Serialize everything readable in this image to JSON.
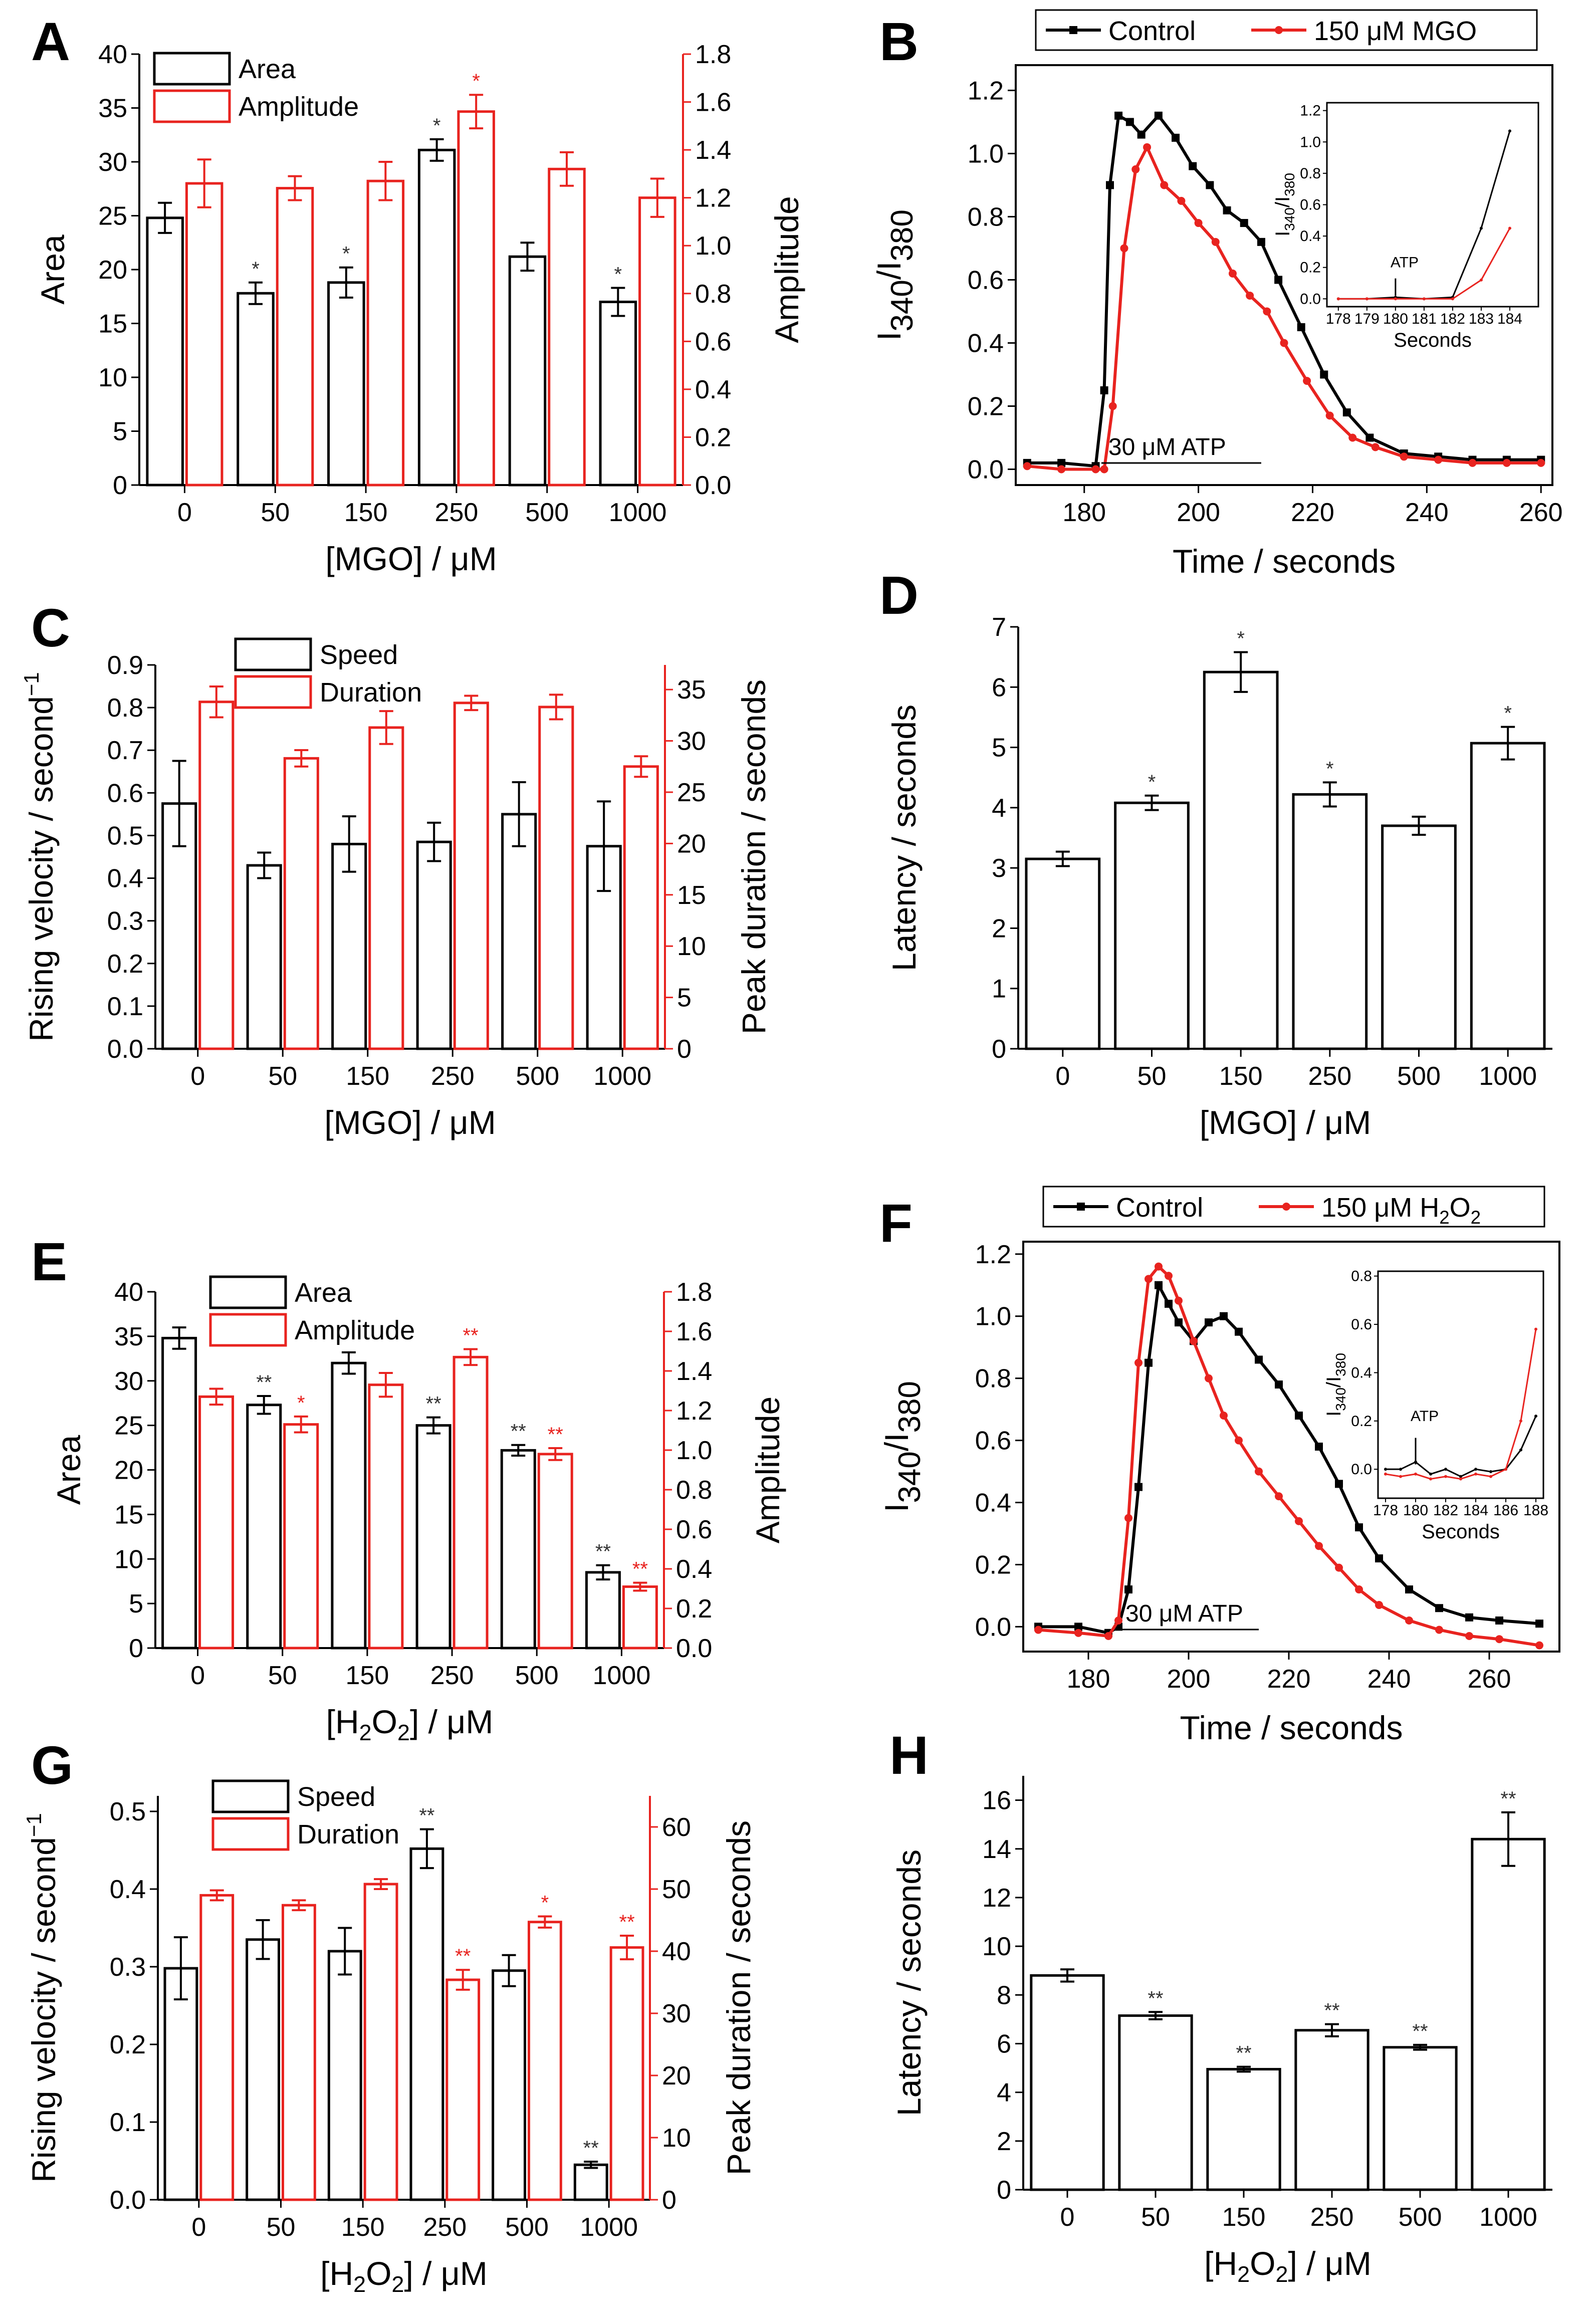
{
  "chart_data": [
    {
      "panel": "A",
      "type": "bar",
      "xlabel": "[MGO]   /   μM",
      "categories": [
        "0",
        "50",
        "150",
        "250",
        "500",
        "1000"
      ],
      "ylabel": "Area",
      "ylim": [
        0,
        40
      ],
      "yticks": [
        0,
        5,
        10,
        15,
        20,
        25,
        30,
        35,
        40
      ],
      "y2label": "Amplitude",
      "y2lim": [
        0,
        1.8
      ],
      "y2ticks": [
        0.0,
        0.2,
        0.4,
        0.6,
        0.8,
        1.0,
        1.2,
        1.4,
        1.6,
        1.8
      ],
      "y2ticklabels": [
        "0.0",
        "0.2",
        "0.4",
        "0.6",
        "0.8",
        "1.0",
        "1.2",
        "1.4",
        "1.6",
        "1.8"
      ],
      "legend": [
        "Area",
        "Amplitude"
      ],
      "series": [
        {
          "name": "Area",
          "axis": "left",
          "color": "#000000",
          "values": [
            24.8,
            17.8,
            18.8,
            31.1,
            21.2,
            17.0
          ],
          "errors": [
            1.4,
            1.0,
            1.4,
            1.0,
            1.3,
            1.3
          ],
          "stars": [
            "",
            "*",
            "*",
            "*",
            "",
            "*"
          ]
        },
        {
          "name": "Amplitude",
          "axis": "right",
          "color": "#e8231f",
          "values": [
            1.26,
            1.24,
            1.27,
            1.56,
            1.32,
            1.2
          ],
          "errors": [
            0.1,
            0.05,
            0.08,
            0.07,
            0.07,
            0.08
          ],
          "stars": [
            "",
            "",
            "",
            "*",
            "",
            ""
          ]
        }
      ]
    },
    {
      "panel": "B",
      "type": "line",
      "xlabel": "Time   /   seconds",
      "ylabel_main": "I",
      "ylabel_sub1": "340",
      "ylabel_slash": "/I",
      "ylabel_sub2": "380",
      "xlim": [
        168,
        262
      ],
      "xticks": [
        180,
        200,
        220,
        240,
        260
      ],
      "ylim": [
        -0.05,
        1.28
      ],
      "yticks": [
        0.0,
        0.2,
        0.4,
        0.6,
        0.8,
        1.0,
        1.2
      ],
      "yticklabels": [
        "0.0",
        "0.2",
        "0.4",
        "0.6",
        "0.8",
        "1.0",
        "1.2"
      ],
      "annotation": "30 μM ATP",
      "annotation_x": [
        183,
        211
      ],
      "legend": [
        "Control",
        "150 μM MGO"
      ],
      "series": [
        {
          "name": "Control",
          "color": "#000000",
          "marker": "square",
          "x": [
            170,
            176,
            182,
            183.5,
            184.5,
            186,
            188,
            190,
            193,
            196,
            199,
            202,
            205,
            208,
            211,
            214,
            218,
            222,
            226,
            230,
            236,
            242,
            248,
            254,
            260
          ],
          "y": [
            0.02,
            0.02,
            0.01,
            0.25,
            0.9,
            1.12,
            1.1,
            1.06,
            1.12,
            1.05,
            0.96,
            0.9,
            0.82,
            0.78,
            0.72,
            0.6,
            0.45,
            0.3,
            0.18,
            0.1,
            0.05,
            0.04,
            0.03,
            0.03,
            0.03
          ]
        },
        {
          "name": "150 μM MGO",
          "color": "#e8231f",
          "marker": "circle",
          "x": [
            170,
            176,
            182,
            183.5,
            185,
            187,
            189,
            191,
            194,
            197,
            200,
            203,
            206,
            209,
            212,
            215,
            219,
            223,
            227,
            231,
            236,
            242,
            248,
            254,
            260
          ],
          "y": [
            0.01,
            0.0,
            0.0,
            0.0,
            0.2,
            0.7,
            0.95,
            1.02,
            0.9,
            0.85,
            0.78,
            0.72,
            0.62,
            0.55,
            0.5,
            0.4,
            0.28,
            0.17,
            0.1,
            0.07,
            0.04,
            0.03,
            0.02,
            0.02,
            0.02
          ]
        }
      ],
      "inset": {
        "xlabel": "Seconds",
        "ylabel_main": "I",
        "ylabel_sub1": "340",
        "ylabel_slash": "/I",
        "ylabel_sub2": "380",
        "xlim": [
          177.6,
          185
        ],
        "xticks": [
          178,
          179,
          180,
          181,
          182,
          183,
          184
        ],
        "ylim": [
          -0.05,
          1.25
        ],
        "yticks": [
          0.0,
          0.2,
          0.4,
          0.6,
          0.8,
          1.0,
          1.2
        ],
        "yticklabels": [
          "0.0",
          "0.2",
          "0.4",
          "0.6",
          "0.8",
          "1.0",
          "1.2"
        ],
        "annotation": "ATP",
        "series": [
          {
            "name": "Control",
            "color": "#000000",
            "x": [
              178,
              179,
              180,
              181,
              182,
              183,
              184
            ],
            "y": [
              0.0,
              0.0,
              0.01,
              0.0,
              0.01,
              0.45,
              1.07
            ]
          },
          {
            "name": "150 μM MGO",
            "color": "#e8231f",
            "x": [
              178,
              179,
              180,
              181,
              182,
              183,
              184
            ],
            "y": [
              0.0,
              0.0,
              0.0,
              0.0,
              0.0,
              0.12,
              0.45
            ]
          }
        ]
      }
    },
    {
      "panel": "C",
      "type": "bar",
      "xlabel": "[MGO]   /   μM",
      "categories": [
        "0",
        "50",
        "150",
        "250",
        "500",
        "1000"
      ],
      "ylabel": "Rising velocity / second",
      "ylabel_sup": "−1",
      "ylim": [
        0,
        0.9
      ],
      "yticks": [
        0.0,
        0.1,
        0.2,
        0.3,
        0.4,
        0.5,
        0.6,
        0.7,
        0.8,
        0.9
      ],
      "yticklabels": [
        "0.0",
        "0.1",
        "0.2",
        "0.3",
        "0.4",
        "0.5",
        "0.6",
        "0.7",
        "0.8",
        "0.9"
      ],
      "y2label": "Peak duration / seconds",
      "y2lim": [
        0,
        37.4
      ],
      "y2ticks": [
        0,
        5,
        10,
        15,
        20,
        25,
        30,
        35
      ],
      "legend": [
        "Speed",
        "Duration"
      ],
      "series": [
        {
          "name": "Speed",
          "axis": "left",
          "color": "#000000",
          "values": [
            0.575,
            0.43,
            0.48,
            0.485,
            0.55,
            0.475
          ],
          "errors": [
            0.1,
            0.03,
            0.065,
            0.045,
            0.075,
            0.105
          ]
        },
        {
          "name": "Duration",
          "axis": "right",
          "color": "#e8231f",
          "values": [
            33.8,
            28.3,
            31.3,
            33.7,
            33.3,
            27.5
          ],
          "errors": [
            1.5,
            0.8,
            1.6,
            0.7,
            1.2,
            1.0
          ]
        }
      ]
    },
    {
      "panel": "D",
      "type": "bar",
      "xlabel": "[MGO]   /   μM",
      "categories": [
        "0",
        "50",
        "150",
        "250",
        "500",
        "1000"
      ],
      "ylabel": "Latency   /   seconds",
      "ylim": [
        0,
        7
      ],
      "yticks": [
        0,
        1,
        2,
        3,
        4,
        5,
        6,
        7
      ],
      "series": [
        {
          "name": "Latency",
          "color": "#000000",
          "values": [
            3.15,
            4.08,
            6.25,
            4.22,
            3.7,
            5.07
          ],
          "errors": [
            0.12,
            0.12,
            0.33,
            0.2,
            0.15,
            0.27
          ],
          "stars": [
            "",
            "*",
            "*",
            "*",
            "",
            "*"
          ]
        }
      ]
    },
    {
      "panel": "E",
      "type": "bar",
      "xlabel": "[H2O2]   /   μM",
      "categories": [
        "0",
        "50",
        "150",
        "250",
        "500",
        "1000"
      ],
      "ylabel": "Area",
      "ylim": [
        0,
        40
      ],
      "yticks": [
        0,
        5,
        10,
        15,
        20,
        25,
        30,
        35,
        40
      ],
      "y2label": "Amplitude",
      "y2lim": [
        0,
        1.8
      ],
      "y2ticks": [
        0.0,
        0.2,
        0.4,
        0.6,
        0.8,
        1.0,
        1.2,
        1.4,
        1.6,
        1.8
      ],
      "y2ticklabels": [
        "0.0",
        "0.2",
        "0.4",
        "0.6",
        "0.8",
        "1.0",
        "1.2",
        "1.4",
        "1.6",
        "1.8"
      ],
      "legend": [
        "Area",
        "Amplitude"
      ],
      "series": [
        {
          "name": "Area",
          "axis": "left",
          "color": "#000000",
          "values": [
            34.8,
            27.3,
            32.0,
            25.0,
            22.2,
            8.5
          ],
          "errors": [
            1.2,
            1.0,
            1.2,
            0.9,
            0.6,
            0.8
          ],
          "stars": [
            "",
            "**",
            "",
            "**",
            "**",
            "**"
          ]
        },
        {
          "name": "Amplitude",
          "axis": "right",
          "color": "#e8231f",
          "values": [
            1.27,
            1.13,
            1.33,
            1.47,
            0.98,
            0.31
          ],
          "errors": [
            0.04,
            0.04,
            0.06,
            0.04,
            0.03,
            0.02
          ],
          "stars": [
            "",
            "*",
            "",
            "**",
            "**",
            "**"
          ]
        }
      ]
    },
    {
      "panel": "F",
      "type": "line",
      "xlabel": "Time   /   seconds",
      "ylabel_main": "I",
      "ylabel_sub1": "340",
      "ylabel_slash": "/I",
      "ylabel_sub2": "380",
      "xlim": [
        167,
        274
      ],
      "xticks": [
        180,
        200,
        220,
        240,
        260
      ],
      "ylim": [
        -0.08,
        1.24
      ],
      "yticks": [
        0.0,
        0.2,
        0.4,
        0.6,
        0.8,
        1.0,
        1.2
      ],
      "yticklabels": [
        "0.0",
        "0.2",
        "0.4",
        "0.6",
        "0.8",
        "1.0",
        "1.2"
      ],
      "annotation": "30 μM ATP",
      "annotation_x": [
        186,
        214
      ],
      "legend": [
        "Control",
        "150 μM H2O2"
      ],
      "series": [
        {
          "name": "Control",
          "color": "#000000",
          "marker": "square",
          "x": [
            170,
            178,
            184,
            186,
            188,
            190,
            192,
            194,
            196,
            198,
            201,
            204,
            207,
            210,
            214,
            218,
            222,
            226,
            230,
            234,
            238,
            244,
            250,
            256,
            262,
            270
          ],
          "y": [
            0.0,
            0.0,
            -0.02,
            0.0,
            0.12,
            0.45,
            0.85,
            1.1,
            1.04,
            0.98,
            0.92,
            0.98,
            1.0,
            0.95,
            0.86,
            0.78,
            0.68,
            0.58,
            0.46,
            0.32,
            0.22,
            0.12,
            0.06,
            0.03,
            0.02,
            0.01
          ]
        },
        {
          "name": "150 μM H2O2",
          "color": "#e8231f",
          "marker": "circle",
          "x": [
            170,
            178,
            184,
            186,
            188,
            190,
            192,
            194,
            196,
            198,
            201,
            204,
            207,
            210,
            214,
            218,
            222,
            226,
            230,
            234,
            238,
            244,
            250,
            256,
            262,
            270
          ],
          "y": [
            -0.01,
            -0.02,
            -0.03,
            0.02,
            0.35,
            0.85,
            1.12,
            1.16,
            1.13,
            1.05,
            0.92,
            0.8,
            0.68,
            0.6,
            0.5,
            0.42,
            0.34,
            0.26,
            0.19,
            0.12,
            0.07,
            0.02,
            -0.01,
            -0.03,
            -0.04,
            -0.06
          ]
        }
      ],
      "inset": {
        "xlabel": "Seconds",
        "ylabel_main": "I",
        "ylabel_sub1": "340",
        "ylabel_slash": "/I",
        "ylabel_sub2": "380",
        "xlim": [
          177.5,
          188.5
        ],
        "xticks": [
          178,
          180,
          182,
          184,
          186,
          188
        ],
        "ylim": [
          -0.12,
          0.82
        ],
        "yticks": [
          0.0,
          0.2,
          0.4,
          0.6,
          0.8
        ],
        "yticklabels": [
          "0.0",
          "0.2",
          "0.4",
          "0.6",
          "0.8"
        ],
        "annotation": "ATP",
        "series": [
          {
            "name": "Control",
            "color": "#000000",
            "x": [
              178,
              179,
              180,
              181,
              182,
              183,
              184,
              185,
              186,
              187,
              188
            ],
            "y": [
              0.0,
              0.0,
              0.03,
              -0.02,
              0.0,
              -0.03,
              0.0,
              -0.01,
              0.0,
              0.08,
              0.22
            ]
          },
          {
            "name": "150 μM H2O2",
            "color": "#e8231f",
            "x": [
              178,
              179,
              180,
              181,
              182,
              183,
              184,
              185,
              186,
              187,
              188
            ],
            "y": [
              -0.02,
              -0.03,
              -0.02,
              -0.04,
              -0.03,
              -0.04,
              -0.02,
              -0.03,
              0.0,
              0.2,
              0.58
            ]
          }
        ]
      }
    },
    {
      "panel": "G",
      "type": "bar",
      "xlabel": "[H2O2]   /   μM",
      "categories": [
        "0",
        "50",
        "150",
        "250",
        "500",
        "1000"
      ],
      "ylabel": "Rising velocity / second",
      "ylabel_sup": "−1",
      "ylim": [
        0,
        0.52
      ],
      "yticks": [
        0.0,
        0.1,
        0.2,
        0.3,
        0.4,
        0.5
      ],
      "yticklabels": [
        "0.0",
        "0.1",
        "0.2",
        "0.3",
        "0.4",
        "0.5"
      ],
      "y2label": "Peak duration / seconds",
      "y2lim": [
        0,
        65
      ],
      "y2ticks": [
        0,
        10,
        20,
        30,
        40,
        50,
        60
      ],
      "legend": [
        "Speed",
        "Duration"
      ],
      "series": [
        {
          "name": "Speed",
          "axis": "left",
          "color": "#000000",
          "values": [
            0.298,
            0.335,
            0.32,
            0.452,
            0.295,
            0.045
          ],
          "errors": [
            0.04,
            0.025,
            0.03,
            0.025,
            0.02,
            0.004
          ],
          "stars": [
            "",
            "",
            "",
            "**",
            "",
            "**"
          ]
        },
        {
          "name": "Duration",
          "axis": "right",
          "color": "#e8231f",
          "values": [
            49.0,
            47.4,
            50.8,
            35.4,
            44.7,
            40.6
          ],
          "errors": [
            0.8,
            0.8,
            0.8,
            1.6,
            0.9,
            1.9
          ],
          "stars": [
            "",
            "",
            "",
            "**",
            "*",
            "**"
          ]
        }
      ]
    },
    {
      "panel": "H",
      "type": "bar",
      "xlabel": "[H2O2]   /   μM",
      "categories": [
        "0",
        "50",
        "150",
        "250",
        "500",
        "1000"
      ],
      "ylabel": "Latency   /   seconds",
      "ylim": [
        0,
        17
      ],
      "yticks": [
        0,
        2,
        4,
        6,
        8,
        10,
        12,
        14,
        16
      ],
      "series": [
        {
          "name": "Latency",
          "color": "#000000",
          "values": [
            8.8,
            7.15,
            4.95,
            6.55,
            5.85,
            14.4
          ],
          "errors": [
            0.25,
            0.15,
            0.1,
            0.25,
            0.1,
            1.1
          ],
          "stars": [
            "",
            "**",
            "**",
            "**",
            "**",
            "**"
          ]
        }
      ]
    }
  ]
}
